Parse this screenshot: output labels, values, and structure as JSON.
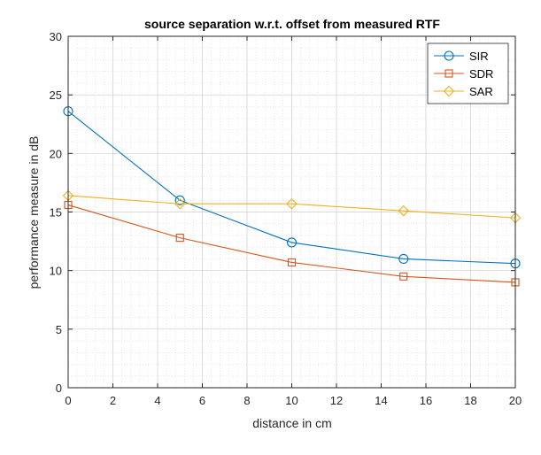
{
  "chart_data": {
    "type": "line",
    "title": "source separation w.r.t. offset from measured RTF",
    "xlabel": "distance in cm",
    "ylabel": "performance measure in dB",
    "xlim": [
      0,
      20
    ],
    "ylim": [
      0,
      30
    ],
    "xticks": [
      0,
      2,
      4,
      6,
      8,
      10,
      12,
      14,
      16,
      18,
      20
    ],
    "yticks": [
      0,
      5,
      10,
      15,
      20,
      25,
      30
    ],
    "grid": true,
    "minor_grid": true,
    "legend_position": "top-right",
    "x": [
      0,
      5,
      10,
      15,
      20
    ],
    "series": [
      {
        "name": "SIR",
        "values": [
          23.6,
          16.0,
          12.4,
          11.0,
          10.6
        ],
        "color": "#0072BD",
        "marker": "circle"
      },
      {
        "name": "SDR",
        "values": [
          15.6,
          12.8,
          10.7,
          9.5,
          9.0
        ],
        "color": "#D95319",
        "marker": "square"
      },
      {
        "name": "SAR",
        "values": [
          16.4,
          15.7,
          15.7,
          15.1,
          14.5
        ],
        "color": "#EDB120",
        "marker": "diamond"
      }
    ]
  }
}
